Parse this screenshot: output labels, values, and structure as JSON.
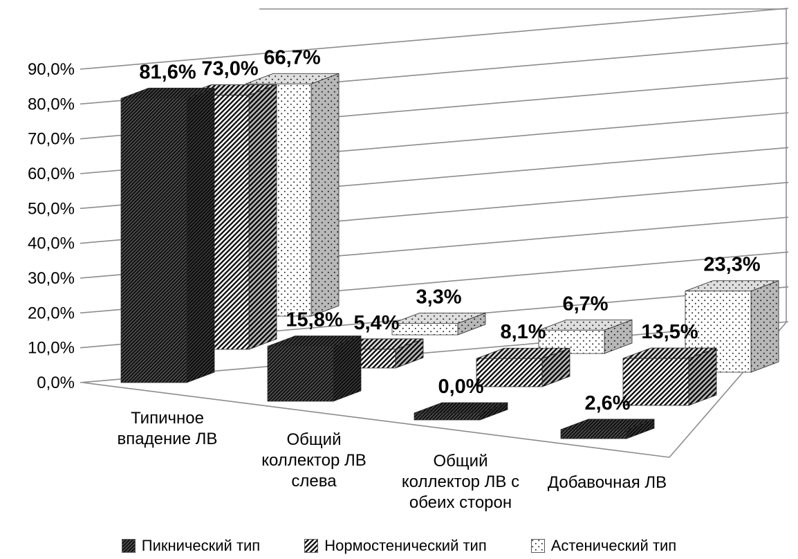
{
  "chart_data": {
    "type": "bar",
    "variant": "3d-column",
    "title": "",
    "categories": [
      "Типичное впадение ЛВ",
      "Общий коллектор ЛВ слева",
      "Общий коллектор ЛВ с обеих сторон",
      "Добавочная ЛВ"
    ],
    "category_lines": [
      [
        "Типичное",
        "впадение ЛВ"
      ],
      [
        "Общий",
        "коллектор ЛВ",
        "слева"
      ],
      [
        "Общий",
        "коллектор ЛВ с",
        "обеих сторон"
      ],
      [
        "Добавочная ЛВ"
      ]
    ],
    "series": [
      {
        "name": "Пикнический тип",
        "values": [
          81.6,
          15.8,
          0.0,
          2.6
        ],
        "value_labels": [
          "81,6%",
          "15,8%",
          "0,0%",
          "2,6%"
        ]
      },
      {
        "name": "Нормостенический тип",
        "values": [
          73.0,
          5.4,
          8.1,
          13.5
        ],
        "value_labels": [
          "73,0%",
          "5,4%",
          "8,1%",
          "13,5%"
        ]
      },
      {
        "name": "Астенический тип",
        "values": [
          66.7,
          3.3,
          6.7,
          23.3
        ],
        "value_labels": [
          "66,7%",
          "3,3%",
          "6,7%",
          "23,3%"
        ]
      }
    ],
    "y_axis": {
      "min": 0,
      "max": 90,
      "step": 10,
      "tick_labels": [
        "0,0%",
        "10,0%",
        "20,0%",
        "30,0%",
        "40,0%",
        "50,0%",
        "60,0%",
        "70,0%",
        "80,0%",
        "90,0%"
      ]
    },
    "legend": {
      "position": "bottom",
      "entries": [
        "Пикнический тип",
        "Нормостенический тип",
        "Астенический тип"
      ]
    },
    "grid": true,
    "colors": {
      "background": "#ffffff",
      "text": "#000000",
      "gridline": "#8c8c8c",
      "bar_dark": "#141414",
      "bar_stripe": "#111111",
      "bar_dot": "#222222"
    }
  }
}
